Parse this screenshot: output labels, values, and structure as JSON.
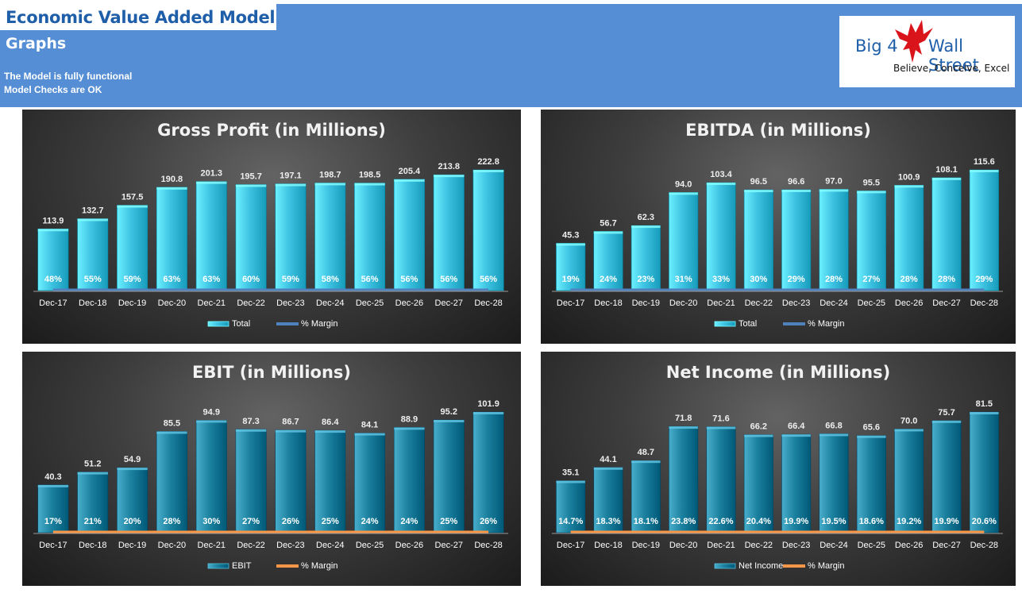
{
  "header": {
    "title": "Economic Value Added Model",
    "subtitle": "Graphs",
    "status_lines": [
      "The Model is fully functional",
      "Model Checks are OK"
    ]
  },
  "logo": {
    "brand_left": "Big 4",
    "brand_right": "Wall Street",
    "tagline": "Believe, Conceive, Excel",
    "icon": "red-eagle-icon"
  },
  "colors": {
    "banner": "#558ed5",
    "cyan_bar": "#3ec3e2",
    "teal_bar": "#1b819f",
    "blue_line": "#4f81bd",
    "orange_line": "#f79646"
  },
  "chart_data": [
    {
      "type": "bar",
      "title": "Gross Profit (in Millions)",
      "categories": [
        "Dec-17",
        "Dec-18",
        "Dec-19",
        "Dec-20",
        "Dec-21",
        "Dec-22",
        "Dec-23",
        "Dec-24",
        "Dec-25",
        "Dec-26",
        "Dec-27",
        "Dec-28"
      ],
      "series": [
        {
          "name": "Total",
          "values": [
            113.9,
            132.7,
            157.5,
            190.8,
            201.3,
            195.7,
            197.1,
            198.7,
            198.5,
            205.4,
            213.8,
            222.8
          ]
        },
        {
          "name": "% Margin",
          "values": [
            "48%",
            "55%",
            "59%",
            "63%",
            "63%",
            "60%",
            "59%",
            "58%",
            "56%",
            "56%",
            "56%",
            "56%"
          ]
        }
      ],
      "bar_color": "#3ec3e2",
      "line_color": "#4f81bd",
      "legend": "bottom",
      "grid": false
    },
    {
      "type": "bar",
      "title": "EBITDA (in Millions)",
      "categories": [
        "Dec-17",
        "Dec-18",
        "Dec-19",
        "Dec-20",
        "Dec-21",
        "Dec-22",
        "Dec-23",
        "Dec-24",
        "Dec-25",
        "Dec-26",
        "Dec-27",
        "Dec-28"
      ],
      "series": [
        {
          "name": "Total",
          "values": [
            45.3,
            56.7,
            62.3,
            94.0,
            103.4,
            96.5,
            96.6,
            97.0,
            95.5,
            100.9,
            108.1,
            115.6
          ]
        },
        {
          "name": "% Margin",
          "values": [
            "19%",
            "24%",
            "23%",
            "31%",
            "33%",
            "30%",
            "29%",
            "28%",
            "27%",
            "28%",
            "28%",
            "29%"
          ]
        }
      ],
      "bar_color": "#3ec3e2",
      "line_color": "#4f81bd",
      "legend": "bottom",
      "grid": false
    },
    {
      "type": "bar",
      "title": "EBIT (in Millions)",
      "categories": [
        "Dec-17",
        "Dec-18",
        "Dec-19",
        "Dec-20",
        "Dec-21",
        "Dec-22",
        "Dec-23",
        "Dec-24",
        "Dec-25",
        "Dec-26",
        "Dec-27",
        "Dec-28"
      ],
      "series": [
        {
          "name": "EBIT",
          "values": [
            40.3,
            51.2,
            54.9,
            85.5,
            94.9,
            87.3,
            86.7,
            86.4,
            84.1,
            88.9,
            95.2,
            101.9
          ]
        },
        {
          "name": "% Margin",
          "values": [
            "17%",
            "21%",
            "20%",
            "28%",
            "30%",
            "27%",
            "26%",
            "25%",
            "24%",
            "24%",
            "25%",
            "26%"
          ]
        }
      ],
      "bar_color": "#1b819f",
      "line_color": "#f79646",
      "legend": "bottom",
      "grid": false
    },
    {
      "type": "bar",
      "title": "Net Income (in Millions)",
      "categories": [
        "Dec-17",
        "Dec-18",
        "Dec-19",
        "Dec-20",
        "Dec-21",
        "Dec-22",
        "Dec-23",
        "Dec-24",
        "Dec-25",
        "Dec-26",
        "Dec-27",
        "Dec-28"
      ],
      "series": [
        {
          "name": "Net Income",
          "values": [
            35.1,
            44.1,
            48.7,
            71.8,
            71.6,
            66.2,
            66.4,
            66.8,
            65.6,
            70.0,
            75.7,
            81.5
          ]
        },
        {
          "name": "% Margin",
          "values": [
            "14.7%",
            "18.3%",
            "18.1%",
            "23.8%",
            "22.6%",
            "20.4%",
            "19.9%",
            "19.5%",
            "18.6%",
            "19.2%",
            "19.9%",
            "20.6%"
          ]
        }
      ],
      "bar_color": "#1b819f",
      "line_color": "#f79646",
      "legend": "bottom",
      "grid": false
    }
  ]
}
